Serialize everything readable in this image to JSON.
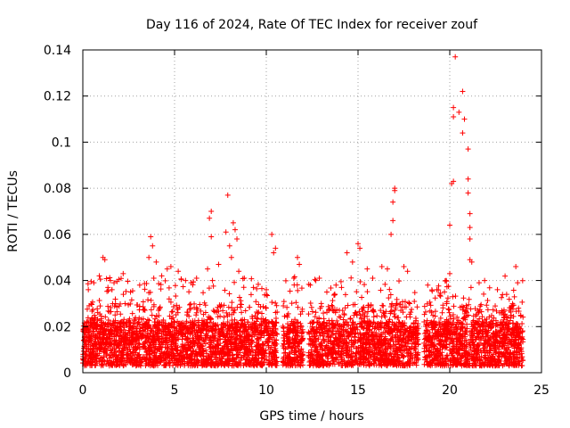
{
  "chart_data": {
    "type": "scatter",
    "title": "Day 116 of 2024, Rate Of TEC Index for receiver zouf",
    "xlabel": "GPS time / hours",
    "ylabel": "ROTI / TECUs",
    "xlim": [
      0,
      25
    ],
    "ylim": [
      0,
      0.14
    ],
    "xticks": [
      0,
      5,
      10,
      15,
      20,
      25
    ],
    "xtick_labels": [
      "0",
      "5",
      "10",
      "15",
      "20",
      "25"
    ],
    "yticks": [
      0,
      0.02,
      0.04,
      0.06,
      0.08,
      0.1,
      0.12,
      0.14
    ],
    "ytick_labels": [
      "0",
      "0.02",
      "0.04",
      "0.06",
      "0.08",
      "0.1",
      "0.12",
      "0.14"
    ],
    "grid": true,
    "marker": "+",
    "color": "#ff0000",
    "dense_band": {
      "x_range": [
        0,
        24
      ],
      "y_typical_range": [
        0.003,
        0.03
      ]
    },
    "gaps": [
      [
        10.6,
        10.9
      ],
      [
        12.0,
        12.3
      ],
      [
        18.3,
        18.6
      ]
    ],
    "series": [
      {
        "name": "ROTI",
        "points": [
          [
            0.3,
            0.036
          ],
          [
            0.6,
            0.039
          ],
          [
            0.9,
            0.042
          ],
          [
            1.1,
            0.05
          ],
          [
            1.2,
            0.049
          ],
          [
            1.5,
            0.04
          ],
          [
            1.7,
            0.039
          ],
          [
            2.2,
            0.043
          ],
          [
            2.6,
            0.035
          ],
          [
            3.1,
            0.038
          ],
          [
            3.6,
            0.05
          ],
          [
            3.7,
            0.059
          ],
          [
            3.8,
            0.055
          ],
          [
            4.0,
            0.048
          ],
          [
            4.3,
            0.042
          ],
          [
            4.6,
            0.045
          ],
          [
            4.8,
            0.046
          ],
          [
            5.2,
            0.044
          ],
          [
            5.6,
            0.04
          ],
          [
            5.9,
            0.039
          ],
          [
            6.2,
            0.041
          ],
          [
            6.8,
            0.045
          ],
          [
            6.9,
            0.067
          ],
          [
            7.0,
            0.07
          ],
          [
            7.0,
            0.059
          ],
          [
            7.4,
            0.047
          ],
          [
            7.8,
            0.061
          ],
          [
            7.9,
            0.077
          ],
          [
            8.0,
            0.055
          ],
          [
            8.1,
            0.05
          ],
          [
            8.2,
            0.065
          ],
          [
            8.3,
            0.062
          ],
          [
            8.4,
            0.058
          ],
          [
            8.5,
            0.044
          ],
          [
            8.8,
            0.041
          ],
          [
            9.3,
            0.037
          ],
          [
            10.0,
            0.036
          ],
          [
            10.3,
            0.06
          ],
          [
            10.4,
            0.052
          ],
          [
            10.5,
            0.054
          ],
          [
            11.5,
            0.041
          ],
          [
            11.7,
            0.05
          ],
          [
            11.8,
            0.047
          ],
          [
            12.4,
            0.038
          ],
          [
            12.7,
            0.04
          ],
          [
            13.3,
            0.035
          ],
          [
            13.8,
            0.038
          ],
          [
            14.1,
            0.037
          ],
          [
            14.4,
            0.052
          ],
          [
            14.7,
            0.048
          ],
          [
            15.0,
            0.056
          ],
          [
            15.1,
            0.054
          ],
          [
            15.5,
            0.045
          ],
          [
            15.8,
            0.041
          ],
          [
            16.3,
            0.046
          ],
          [
            16.6,
            0.045
          ],
          [
            16.8,
            0.06
          ],
          [
            16.9,
            0.066
          ],
          [
            16.9,
            0.074
          ],
          [
            17.0,
            0.08
          ],
          [
            17.0,
            0.079
          ],
          [
            17.5,
            0.046
          ],
          [
            17.7,
            0.044
          ],
          [
            18.8,
            0.038
          ],
          [
            19.3,
            0.036
          ],
          [
            19.8,
            0.04
          ],
          [
            20.0,
            0.043
          ],
          [
            20.0,
            0.064
          ],
          [
            20.1,
            0.082
          ],
          [
            20.2,
            0.083
          ],
          [
            20.2,
            0.111
          ],
          [
            20.2,
            0.115
          ],
          [
            20.3,
            0.137
          ],
          [
            20.5,
            0.113
          ],
          [
            20.7,
            0.122
          ],
          [
            20.7,
            0.104
          ],
          [
            20.8,
            0.11
          ],
          [
            21.0,
            0.097
          ],
          [
            21.0,
            0.084
          ],
          [
            21.0,
            0.078
          ],
          [
            21.1,
            0.069
          ],
          [
            21.1,
            0.063
          ],
          [
            21.1,
            0.058
          ],
          [
            21.1,
            0.049
          ],
          [
            21.2,
            0.048
          ],
          [
            21.6,
            0.039
          ],
          [
            21.9,
            0.04
          ],
          [
            22.6,
            0.036
          ],
          [
            23.1,
            0.034
          ],
          [
            23.6,
            0.046
          ],
          [
            23.7,
            0.039
          ]
        ]
      }
    ]
  }
}
